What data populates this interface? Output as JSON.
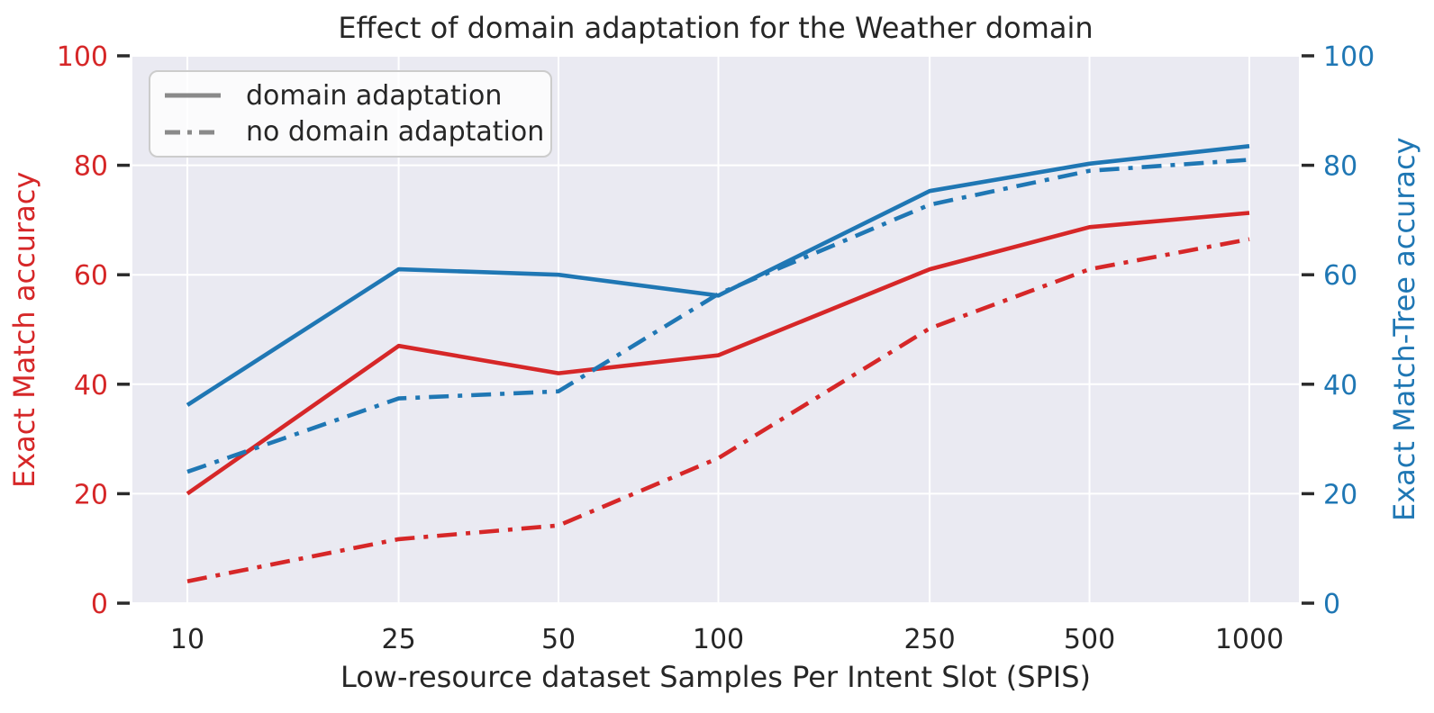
{
  "chart_data": {
    "type": "line",
    "title": "Effect of domain adaptation for the Weather domain",
    "xlabel": "Low-resource dataset Samples Per Intent Slot (SPIS)",
    "ylabel_left": "Exact Match accuracy",
    "ylabel_right": "Exact Match-Tree accuracy",
    "x_scale": "log",
    "x": [
      10,
      25,
      50,
      100,
      250,
      500,
      1000
    ],
    "x_tick_labels": [
      "10",
      "25",
      "50",
      "100",
      "250",
      "500",
      "1000"
    ],
    "y_ticks": [
      0,
      20,
      40,
      60,
      80,
      100
    ],
    "ylim": [
      0,
      100
    ],
    "xlim_log10": [
      0.893,
      3.093
    ],
    "grid": true,
    "series": [
      {
        "name": "Exact Match - domain adaptation",
        "axis": "left",
        "color": "#d62728",
        "line_style": "solid",
        "values": [
          20,
          47,
          42,
          45.3,
          61,
          68.7,
          71.3
        ]
      },
      {
        "name": "Exact Match - no domain adaptation",
        "axis": "left",
        "color": "#d62728",
        "line_style": "dashdot",
        "values": [
          4,
          11.7,
          14.2,
          26.5,
          50.2,
          61,
          66.5
        ]
      },
      {
        "name": "Exact Match-Tree - domain adaptation",
        "axis": "right",
        "color": "#1f77b4",
        "line_style": "solid",
        "values": [
          36.2,
          61,
          60,
          56.2,
          75.3,
          80.3,
          83.5
        ]
      },
      {
        "name": "Exact Match-Tree - no domain adaptation",
        "axis": "right",
        "color": "#1f77b4",
        "line_style": "dashdot",
        "values": [
          24,
          37.4,
          38.7,
          56.5,
          72.8,
          79,
          81
        ]
      }
    ],
    "legend": {
      "position": "upper left",
      "items": [
        {
          "label": "domain adaptation",
          "line_style": "solid"
        },
        {
          "label": "no domain adaptation",
          "line_style": "dashdot"
        }
      ]
    }
  },
  "colors": {
    "left_axis": "#d62728",
    "right_axis": "#1f77b4",
    "plot_background": "#eaeaf2",
    "gridline": "#ffffff",
    "text": "#262626",
    "tick_mark": "#2b2b2b",
    "legend_line": "#8a8a8a",
    "legend_border": "#cccccc"
  }
}
